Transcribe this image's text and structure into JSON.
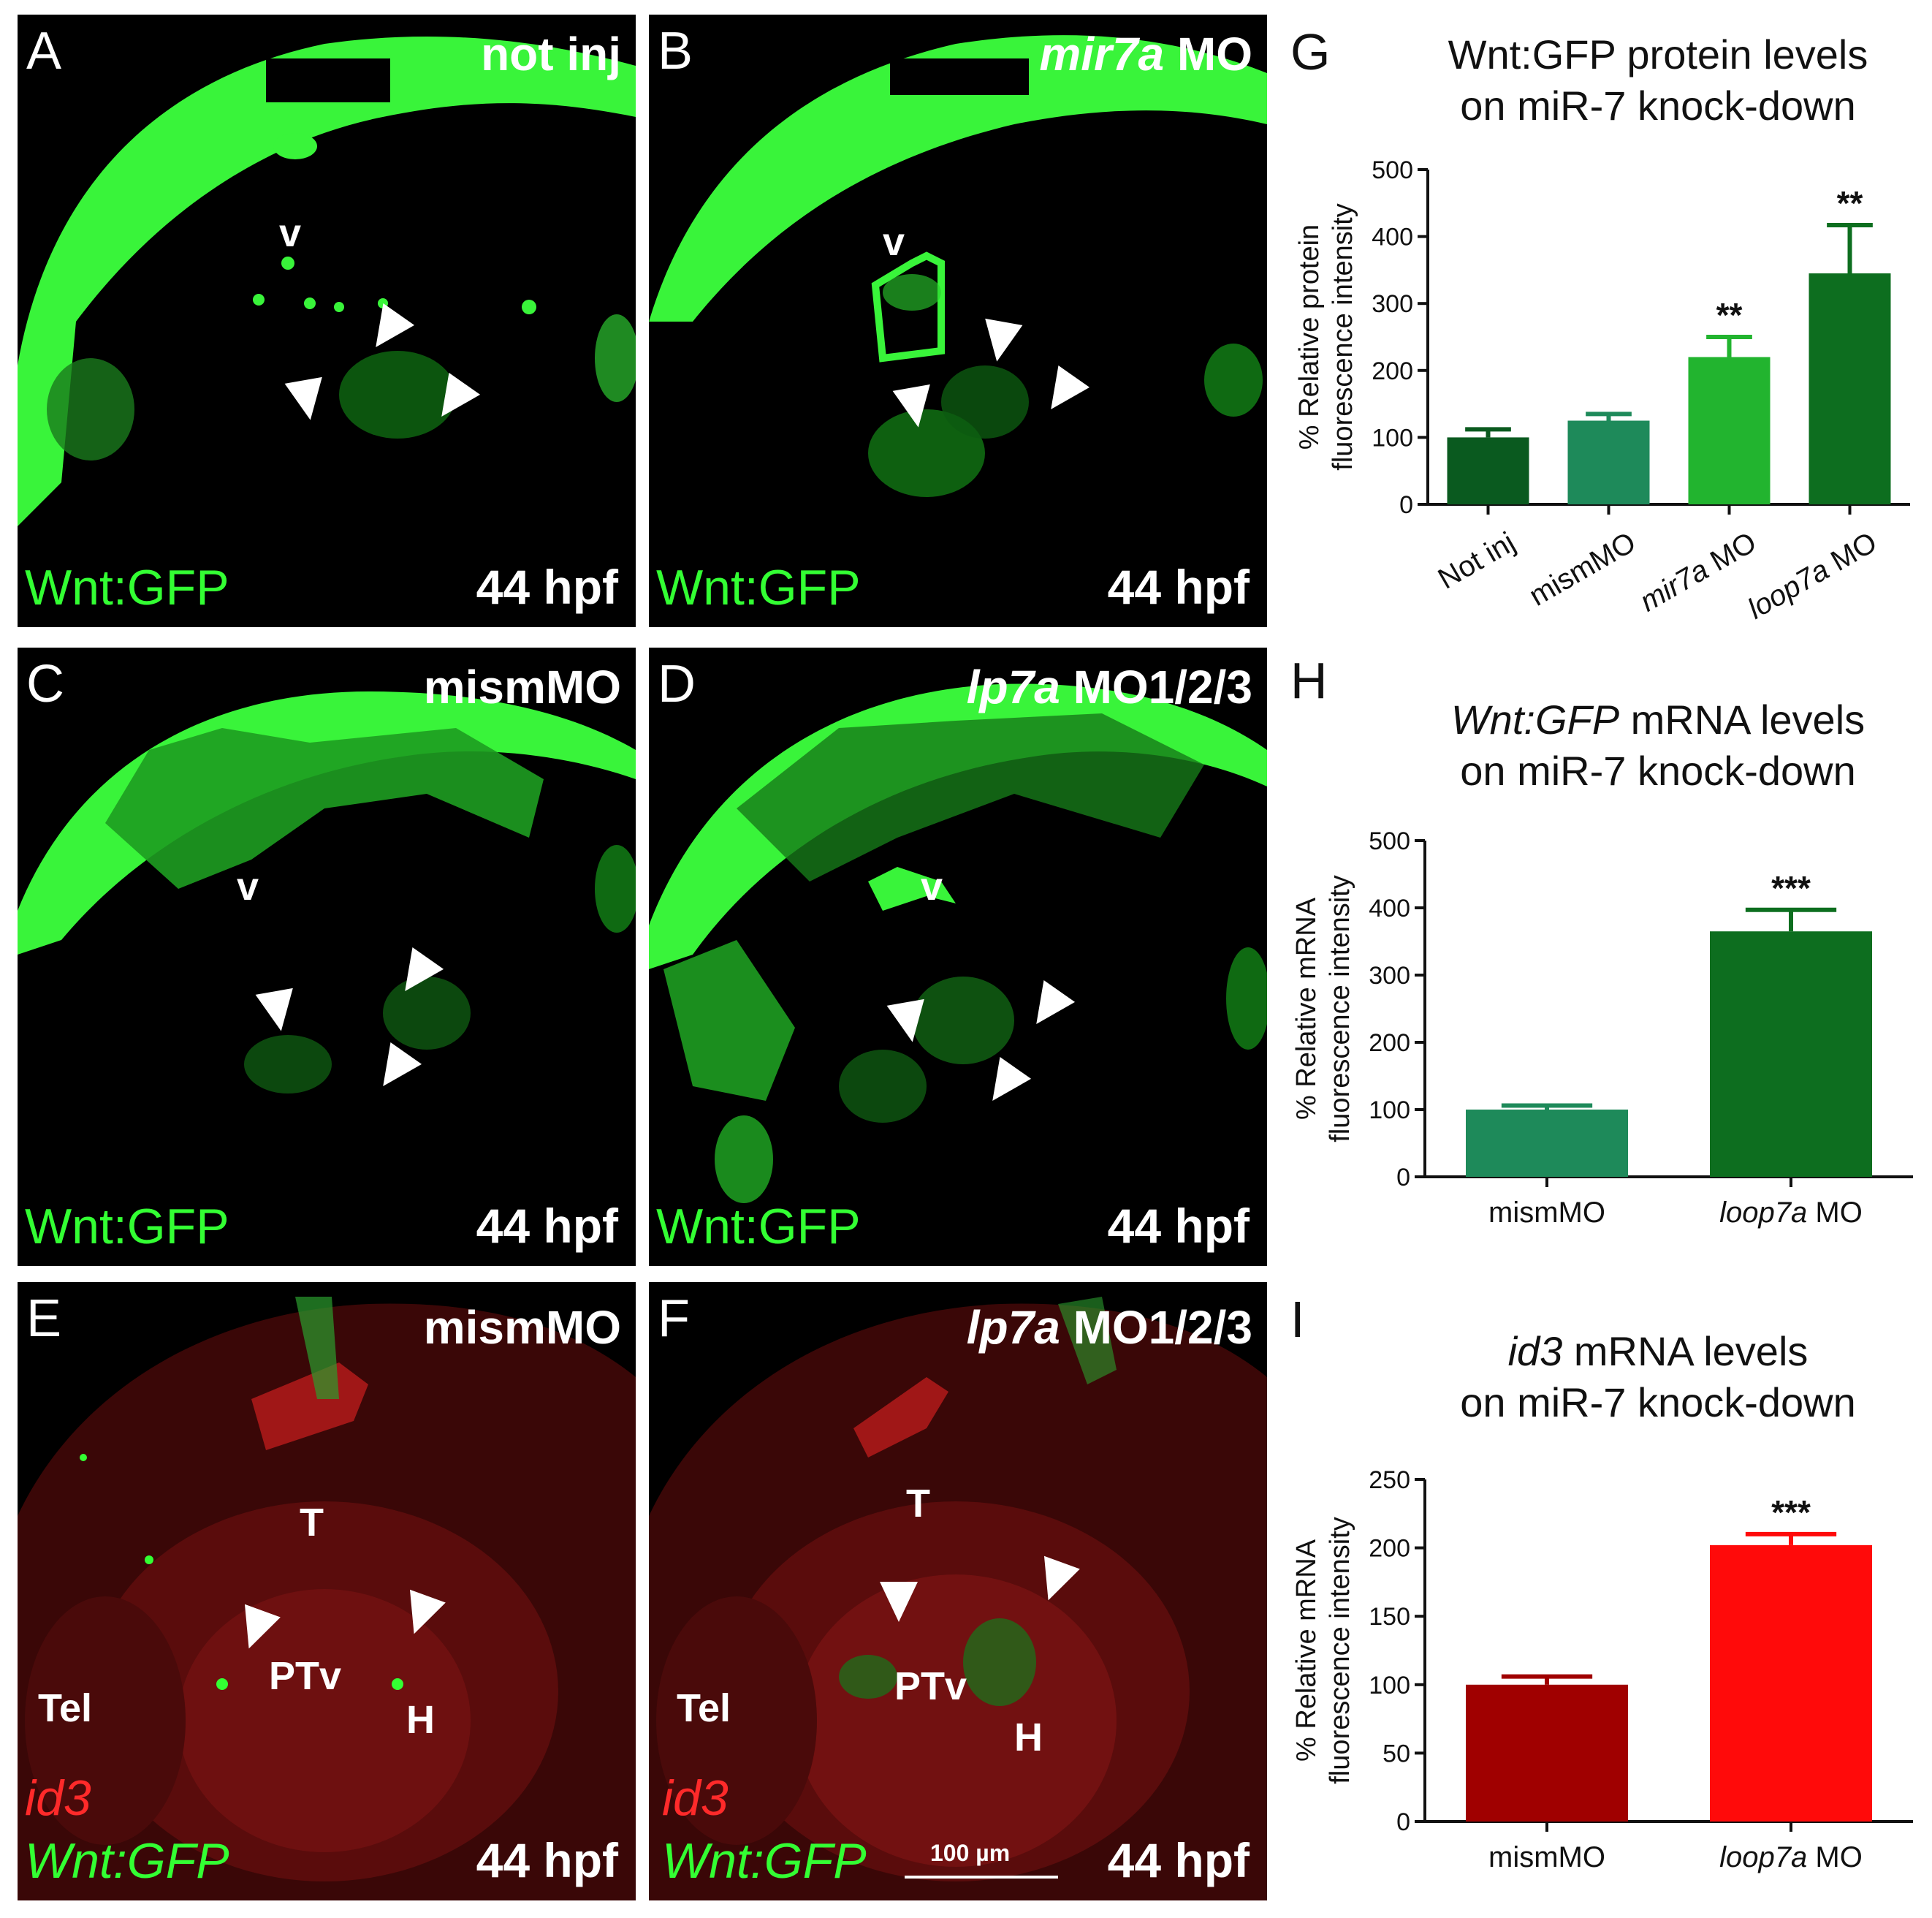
{
  "panels": {
    "A": {
      "label": "A",
      "cond": "not inj",
      "marker": "Wnt:GFP",
      "age": "44 hpf",
      "v": "v"
    },
    "B": {
      "label": "B",
      "cond_italic": "mir7a",
      "cond_rest": " MO",
      "marker": "Wnt:GFP",
      "age": "44 hpf",
      "v": "v"
    },
    "C": {
      "label": "C",
      "cond": "mismMO",
      "marker": "Wnt:GFP",
      "age": "44 hpf",
      "v": "v"
    },
    "D": {
      "label": "D",
      "cond_italic": "lp7a",
      "cond_rest": " MO1/2/3",
      "marker": "Wnt:GFP",
      "age": "44 hpf",
      "v": "v"
    },
    "E": {
      "label": "E",
      "cond": "mismMO",
      "marker1": "id3",
      "marker2": "Wnt:GFP",
      "age": "44 hpf",
      "T": "T",
      "PTv": "PTv",
      "H": "H",
      "Tel": "Tel"
    },
    "F": {
      "label": "F",
      "cond_italic": "lp7a",
      "cond_rest": " MO1/2/3",
      "marker1": "id3",
      "marker2": "Wnt:GFP",
      "age": "44 hpf",
      "T": "T",
      "PTv": "PTv",
      "H": "H",
      "Tel": "Tel",
      "scalebar": "100 µm"
    }
  },
  "colors": {
    "gfp": "#33ff33",
    "red": "#ff2a2a"
  },
  "chart_data": [
    {
      "panel": "G",
      "type": "bar",
      "title": "Wnt:GFP protein levels\non miR-7 knock-down",
      "ylabel_line1": "% Relative protein",
      "ylabel_line2": "fluorescence intensity",
      "ylim": [
        0,
        500
      ],
      "yticks": [
        "0",
        "100",
        "200",
        "300",
        "400",
        "500"
      ],
      "categories": [
        "Not inj",
        "mismMO",
        "mir7a MO",
        "loop7a MO"
      ],
      "values": [
        100,
        125,
        220,
        345
      ],
      "errors": [
        12,
        10,
        30,
        72
      ],
      "significance": [
        "",
        "",
        "**",
        "**"
      ],
      "colors": [
        "#0a5a1f",
        "#1e8a5a",
        "#22b42f",
        "#0d6e1f"
      ]
    },
    {
      "panel": "H",
      "type": "bar",
      "title_italic": "Wnt:GFP",
      "title_rest": " mRNA levels",
      "title_line2": "on miR-7 knock-down",
      "ylabel_line1": "% Relative mRNA",
      "ylabel_line2": "fluorescence intensity",
      "ylim": [
        0,
        500
      ],
      "yticks": [
        "0",
        "100",
        "200",
        "300",
        "400",
        "500"
      ],
      "categories": [
        "mismMO",
        "loop7a MO"
      ],
      "values": [
        100,
        365
      ],
      "errors": [
        6,
        32
      ],
      "significance": [
        "",
        "***"
      ],
      "colors": [
        "#1e8a5a",
        "#0d6e1f"
      ]
    },
    {
      "panel": "I",
      "type": "bar",
      "title_italic": "id3",
      "title_rest": " mRNA levels",
      "title_line2": "on miR-7 knock-down",
      "ylabel_line1": "% Relative mRNA",
      "ylabel_line2": "fluorescence intensity",
      "ylim": [
        0,
        250
      ],
      "yticks": [
        "0",
        "50",
        "100",
        "150",
        "200",
        "250"
      ],
      "categories": [
        "mismMO",
        "loop7a MO"
      ],
      "values": [
        100,
        202
      ],
      "errors": [
        6,
        8
      ],
      "significance": [
        "",
        "***"
      ],
      "colors": [
        "#a00000",
        "#ff0a0a"
      ]
    }
  ]
}
